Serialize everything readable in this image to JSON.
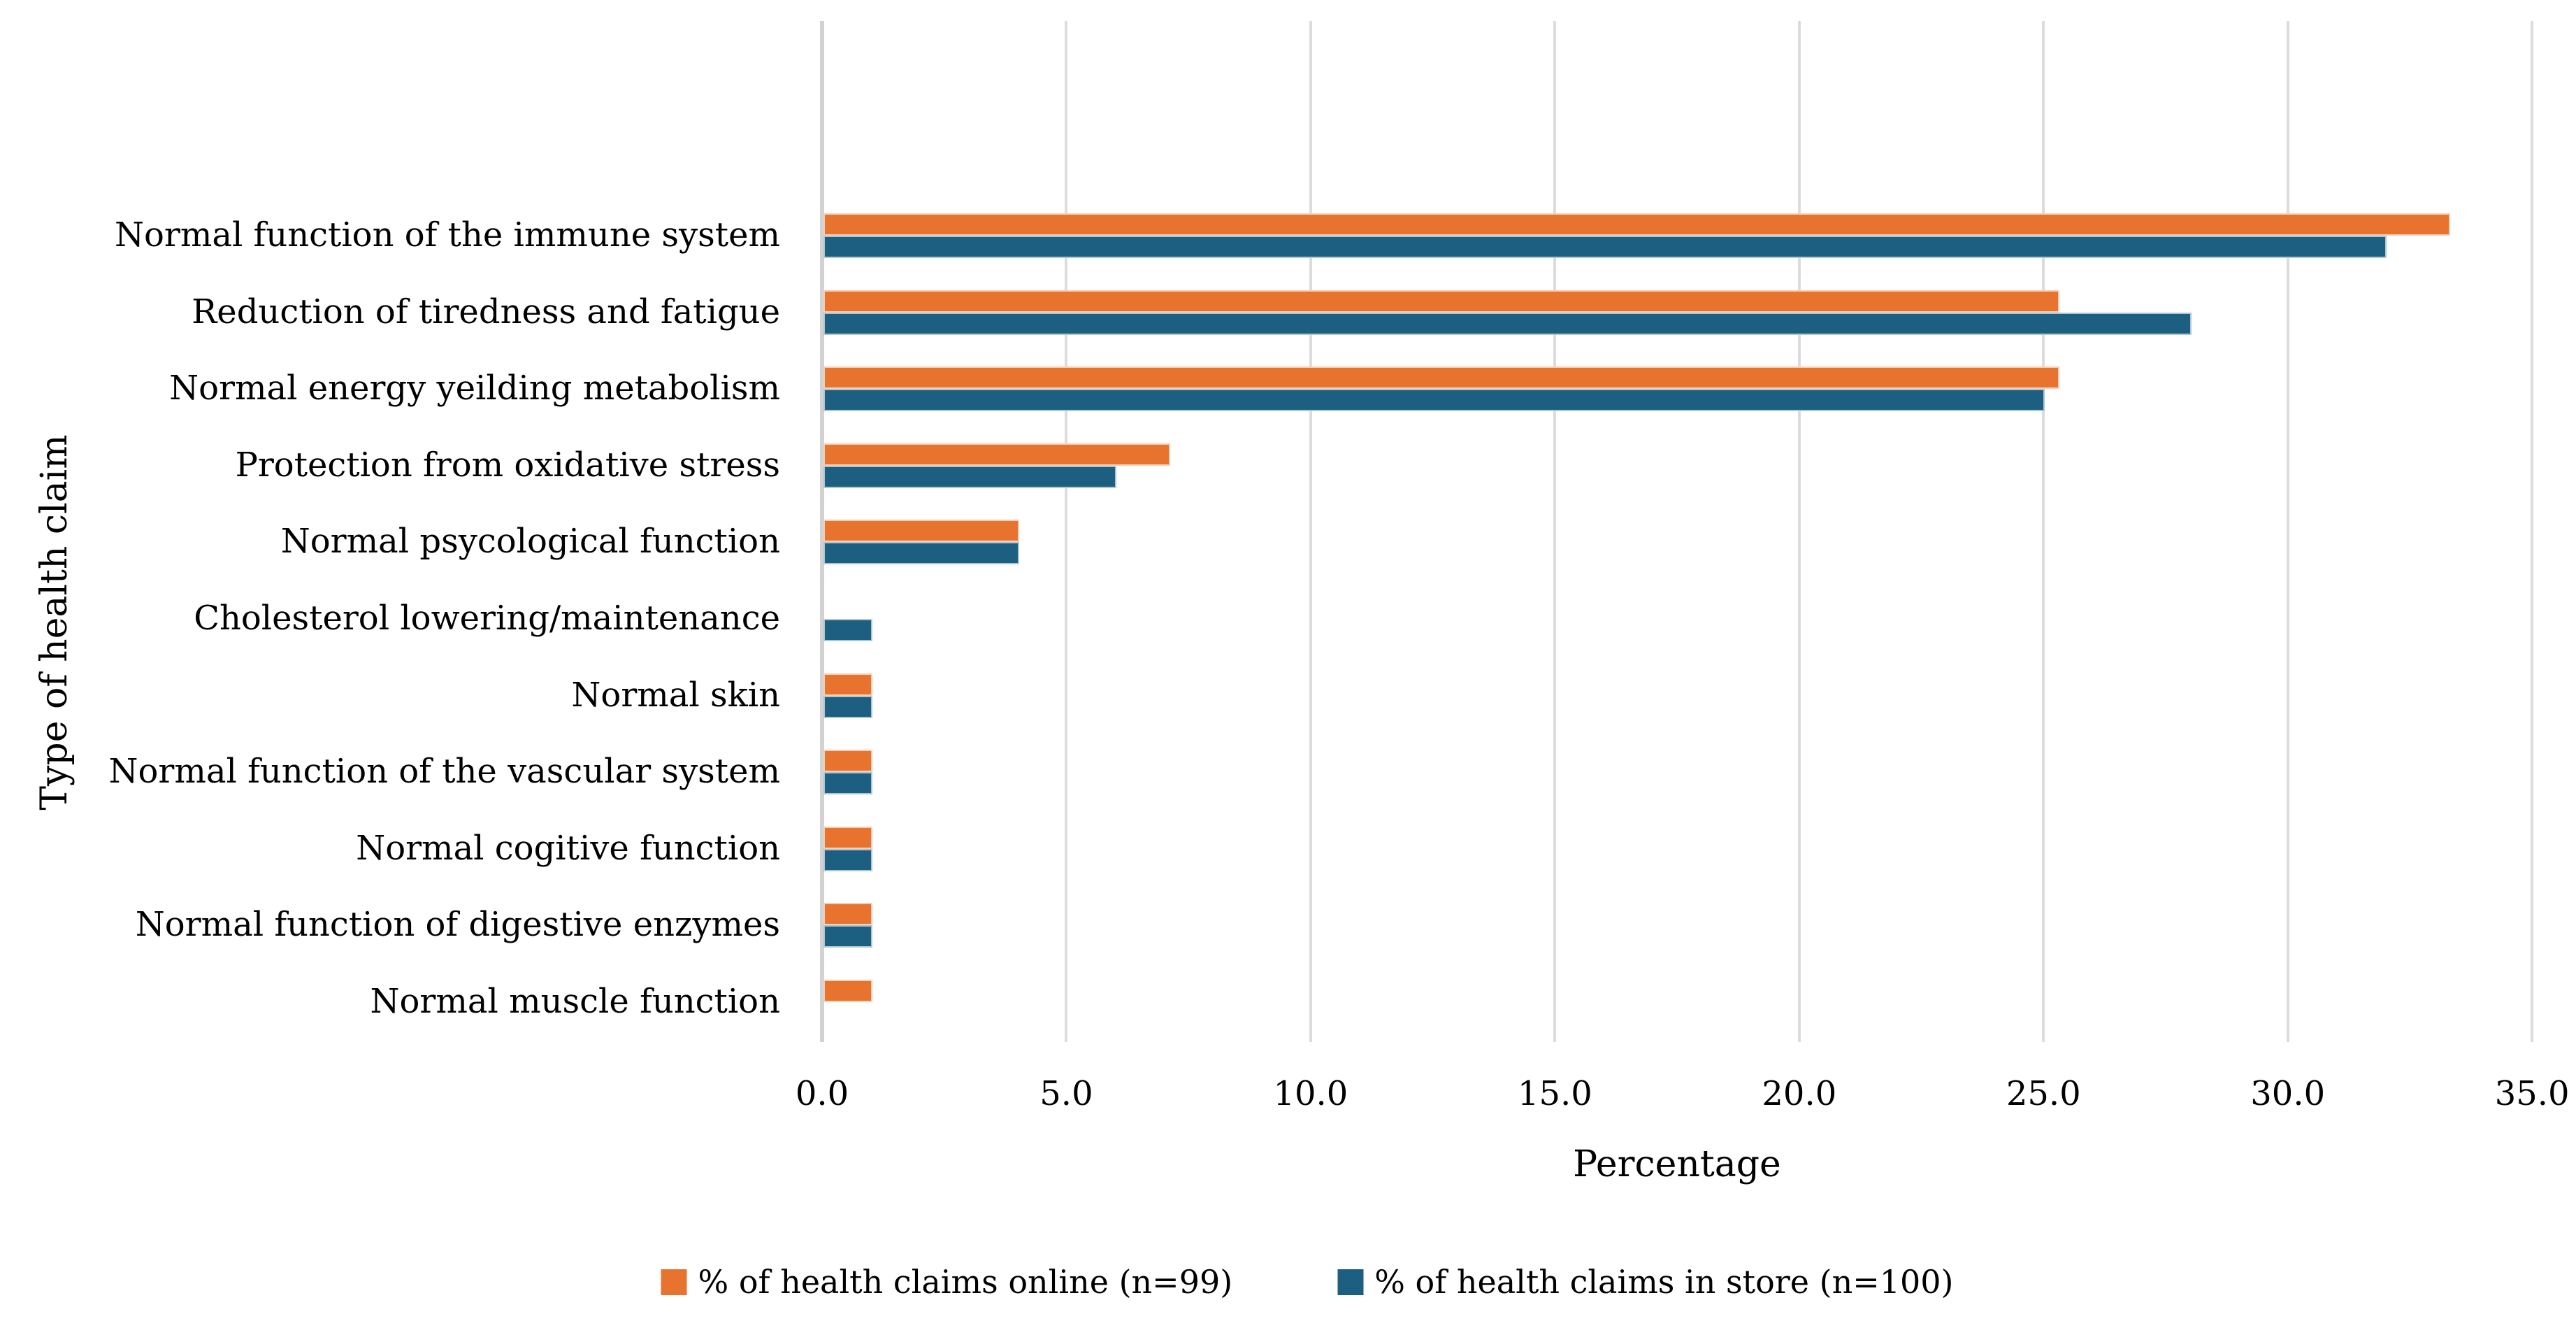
{
  "chart_data": {
    "type": "bar",
    "orientation": "horizontal",
    "title": "",
    "xlabel": "Percentage",
    "ylabel": "Type of health claim",
    "xlim": [
      0,
      35
    ],
    "x_tick_step": 5,
    "x_ticks": [
      "0.0",
      "5.0",
      "10.0",
      "15.0",
      "20.0",
      "25.0",
      "30.0",
      "35.0"
    ],
    "grid": true,
    "legend_position": "bottom",
    "gridline_color": "#DCDCDC",
    "background_color": "#FFFFFF",
    "text_color": "#000000",
    "categories": [
      "Normal function of the immune system",
      "Reduction of tiredness and fatigue",
      "Normal energy yeilding metabolism",
      "Protection from oxidative stress",
      "Normal psycological function",
      "Cholesterol lowering/maintenance",
      "Normal skin",
      "Normal function of the vascular system",
      "Normal cogitive function",
      "Normal function of digestive enzymes",
      "Normal muscle function"
    ],
    "series": [
      {
        "name": "% of health claims online (n=99)",
        "color": "#E8732F",
        "values": [
          33.3,
          25.3,
          25.3,
          7.1,
          4.0,
          0,
          1.0,
          1.0,
          1.0,
          1.0,
          1.0
        ]
      },
      {
        "name": "% of health claims in store (n=100)",
        "color": "#1C5F80",
        "values": [
          32.0,
          28.0,
          25.0,
          6.0,
          4.0,
          1.0,
          1.0,
          1.0,
          1.0,
          1.0,
          0
        ]
      }
    ]
  }
}
